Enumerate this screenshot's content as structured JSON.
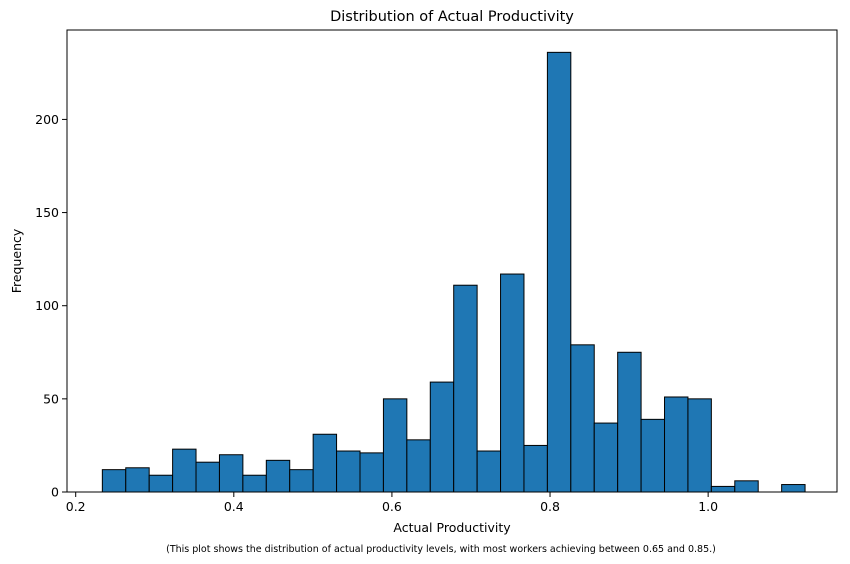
{
  "chart_data": {
    "type": "bar",
    "title": "Distribution of Actual Productivity",
    "xlabel": "Actual Productivity",
    "ylabel": "Frequency",
    "caption": "(This plot shows the distribution of actual productivity levels, with most workers achieving between 0.65 and 0.85.)",
    "bin_start": 0.2337,
    "bin_width": 0.02963,
    "bin_counts": [
      12,
      13,
      9,
      23,
      16,
      20,
      9,
      17,
      12,
      31,
      22,
      21,
      50,
      28,
      59,
      111,
      22,
      117,
      25,
      236,
      79,
      37,
      75,
      39,
      51,
      50,
      3,
      6,
      0,
      4
    ],
    "xlim": [
      0.189,
      1.163
    ],
    "ylim": [
      0,
      248
    ],
    "x_ticks": [
      {
        "value": 0.2,
        "label": "0.2"
      },
      {
        "value": 0.4,
        "label": "0.4"
      },
      {
        "value": 0.6,
        "label": "0.6"
      },
      {
        "value": 0.8,
        "label": "0.8"
      },
      {
        "value": 1.0,
        "label": "1.0"
      }
    ],
    "y_ticks": [
      {
        "value": 0,
        "label": "0"
      },
      {
        "value": 50,
        "label": "50"
      },
      {
        "value": 100,
        "label": "100"
      },
      {
        "value": 150,
        "label": "150"
      },
      {
        "value": 200,
        "label": "200"
      }
    ],
    "bar_color": "#1f77b4",
    "edge_color": "#000000",
    "grid": false,
    "legend": "none"
  }
}
